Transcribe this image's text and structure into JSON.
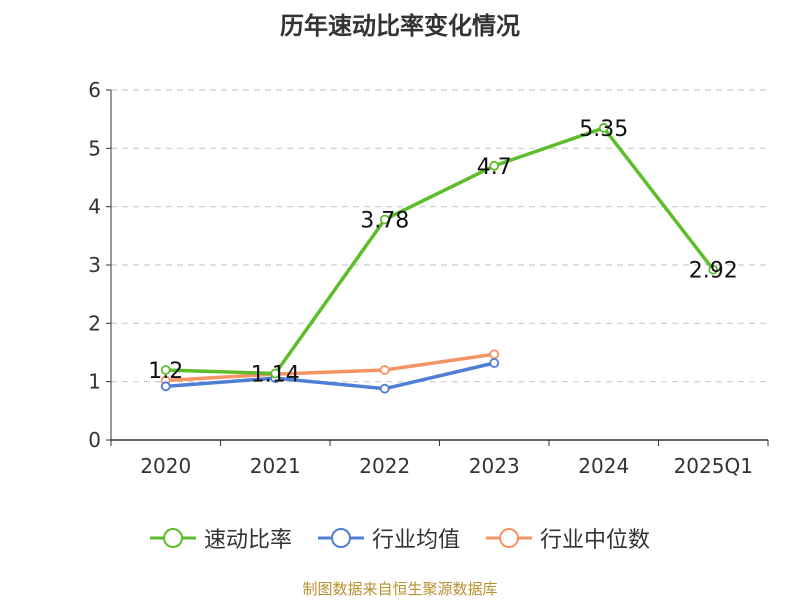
{
  "chart_data": {
    "type": "line",
    "title": "历年速动比率变化情况",
    "categories": [
      "2020",
      "2021",
      "2022",
      "2023",
      "2024",
      "2025Q1"
    ],
    "ylim": [
      0,
      6
    ],
    "yticks": [
      "0",
      "1",
      "2",
      "3",
      "4",
      "5",
      "6"
    ],
    "grid": true,
    "series": [
      {
        "name": "速动比率",
        "color": "#5dbd2c",
        "values": [
          1.2,
          1.14,
          3.78,
          4.7,
          5.35,
          2.92
        ],
        "labels": [
          "1.2",
          "1.14",
          "3.78",
          "4.7",
          "5.35",
          "2.92"
        ]
      },
      {
        "name": "行业均值",
        "color": "#4f7fd5",
        "values": [
          0.92,
          1.06,
          0.88,
          1.32,
          null,
          null
        ]
      },
      {
        "name": "行业中位数",
        "color": "#f59464",
        "values": [
          1.02,
          1.13,
          1.2,
          1.47,
          null,
          null
        ]
      }
    ]
  },
  "source": "制图数据来自恒生聚源数据库"
}
